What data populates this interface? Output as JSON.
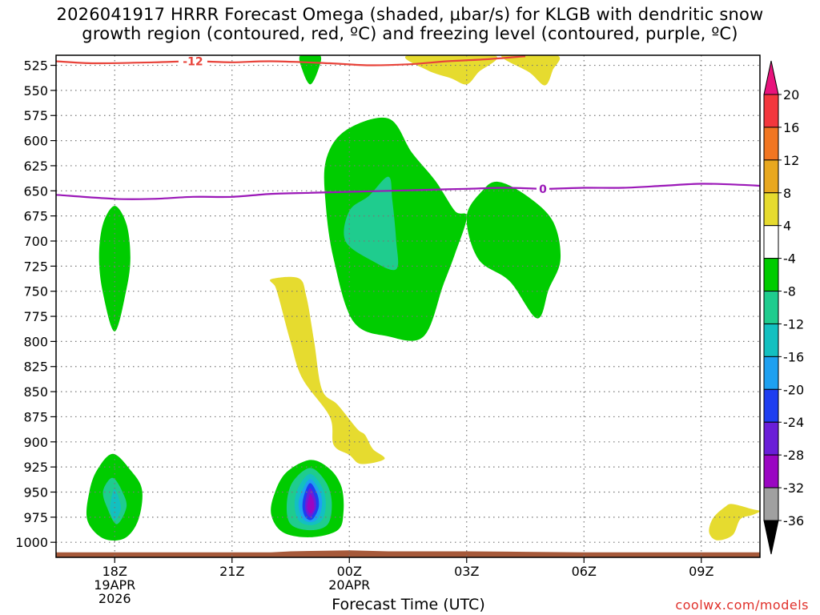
{
  "title": {
    "line1": "2026041917 HRRR Forecast Omega (shaded, μbar/s) for KLGB with dendritic snow",
    "line2": "growth region (contoured, red, ºC) and freezing level (contoured, purple, ºC)"
  },
  "credit": "coolwx.com/models",
  "chart_data": {
    "type": "heatmap",
    "xlabel": "Forecast Time (UTC)",
    "ylabel": "",
    "x_range_hours_utc": [
      16.5,
      34.5
    ],
    "x_ticks": [
      {
        "hour": 18,
        "label": "18Z",
        "sub": [
          "19APR",
          "2026"
        ]
      },
      {
        "hour": 21,
        "label": "21Z",
        "sub": []
      },
      {
        "hour": 24,
        "label": "00Z",
        "sub": [
          "20APR"
        ]
      },
      {
        "hour": 27,
        "label": "03Z",
        "sub": []
      },
      {
        "hour": 30,
        "label": "06Z",
        "sub": []
      },
      {
        "hour": 33,
        "label": "09Z",
        "sub": []
      }
    ],
    "y_range_hpa": [
      1015,
      515
    ],
    "y_inverted": true,
    "y_ticks": [
      525,
      550,
      575,
      600,
      625,
      650,
      675,
      700,
      725,
      750,
      775,
      800,
      825,
      850,
      875,
      900,
      925,
      950,
      975,
      1000
    ],
    "grid": true,
    "colorbar": {
      "levels": [
        {
          "label": "20",
          "color": "#e81a86"
        },
        {
          "label": "16",
          "color": "#f3373d"
        },
        {
          "label": "12",
          "color": "#f17622"
        },
        {
          "label": "8",
          "color": "#e8a81f"
        },
        {
          "label": "4",
          "color": "#e6db2f"
        },
        {
          "label": "-4",
          "color": "#ffffff"
        },
        {
          "label": "-8",
          "color": "#00cc00"
        },
        {
          "label": "-12",
          "color": "#1fcc8e"
        },
        {
          "label": "-16",
          "color": "#13c0c0"
        },
        {
          "label": "-20",
          "color": "#1ea0f0"
        },
        {
          "label": "-24",
          "color": "#1e3ef0"
        },
        {
          "label": "-28",
          "color": "#6a1ed8"
        },
        {
          "label": "-32",
          "color": "#9a06c2"
        },
        {
          "label": "-36",
          "color": "#a0a0a0"
        }
      ],
      "top_arrow_color": "#e8137c",
      "bottom_arrow_color": "#000000"
    },
    "contours": [
      {
        "name": "dendritic growth region",
        "value_label": "-12",
        "color": "#e8433a",
        "points": [
          [
            16.5,
            521
          ],
          [
            17.5,
            523
          ],
          [
            19,
            522
          ],
          [
            20,
            521
          ],
          [
            21,
            522
          ],
          [
            22,
            521
          ],
          [
            23.5,
            523
          ],
          [
            24.5,
            525
          ],
          [
            25.5,
            524
          ],
          [
            26.5,
            521
          ],
          [
            27.5,
            519
          ],
          [
            28.5,
            516
          ]
        ]
      },
      {
        "name": "freezing level",
        "value_label": "0",
        "color": "#9b18b8",
        "points": [
          [
            16.5,
            654
          ],
          [
            18,
            658
          ],
          [
            19,
            658
          ],
          [
            20,
            656
          ],
          [
            21,
            656
          ],
          [
            22,
            653
          ],
          [
            23,
            652
          ],
          [
            24,
            651
          ],
          [
            25,
            650
          ],
          [
            26,
            649
          ],
          [
            27,
            648
          ],
          [
            28,
            647
          ],
          [
            29,
            648
          ],
          [
            30,
            647
          ],
          [
            31,
            647
          ],
          [
            32,
            645
          ],
          [
            33,
            643
          ],
          [
            34,
            644
          ],
          [
            34.5,
            645
          ]
        ]
      }
    ],
    "omega_regions": [
      {
        "band": "-8",
        "color": "#00cc00",
        "points": [
          [
            22.75,
            515
          ],
          [
            23.25,
            515
          ],
          [
            23.2,
            530
          ],
          [
            23.0,
            544
          ],
          [
            22.8,
            530
          ]
        ]
      },
      {
        "band": "4",
        "color": "#e6db2f",
        "points": [
          [
            25.5,
            515
          ],
          [
            27.7,
            515
          ],
          [
            27.3,
            532
          ],
          [
            27.0,
            544
          ],
          [
            26.6,
            538
          ],
          [
            26.0,
            530
          ]
        ]
      },
      {
        "band": "4",
        "color": "#e6db2f",
        "points": [
          [
            27.9,
            515
          ],
          [
            29.3,
            515
          ],
          [
            29.2,
            530
          ],
          [
            29.0,
            545
          ],
          [
            28.6,
            532
          ]
        ]
      },
      {
        "band": "-8",
        "color": "#00cc00",
        "points": [
          [
            18.0,
            665
          ],
          [
            18.3,
            683
          ],
          [
            18.4,
            716
          ],
          [
            18.3,
            748
          ],
          [
            18.0,
            790
          ],
          [
            17.7,
            752
          ],
          [
            17.6,
            716
          ],
          [
            17.7,
            683
          ]
        ]
      },
      {
        "band": "-8",
        "color": "#00cc00",
        "points": [
          [
            25.0,
            578
          ],
          [
            25.6,
            612
          ],
          [
            26.2,
            640
          ],
          [
            26.7,
            670
          ],
          [
            27.0,
            676
          ],
          [
            26.7,
            713
          ],
          [
            26.4,
            744
          ],
          [
            25.9,
            795
          ],
          [
            25.0,
            795
          ],
          [
            24.1,
            780
          ],
          [
            23.6,
            718
          ],
          [
            23.4,
            665
          ],
          [
            23.4,
            620
          ],
          [
            23.9,
            590
          ]
        ]
      },
      {
        "band": "-12",
        "color": "#1fcc8e",
        "points": [
          [
            25.0,
            636
          ],
          [
            25.1,
            660
          ],
          [
            25.2,
            700
          ],
          [
            25.2,
            728
          ],
          [
            24.6,
            720
          ],
          [
            23.9,
            700
          ],
          [
            24.0,
            670
          ],
          [
            24.5,
            655
          ]
        ]
      },
      {
        "band": "-8",
        "color": "#00cc00",
        "points": [
          [
            27.8,
            641
          ],
          [
            28.5,
            654
          ],
          [
            29.2,
            680
          ],
          [
            29.4,
            718
          ],
          [
            29.1,
            748
          ],
          [
            28.8,
            777
          ],
          [
            28.1,
            740
          ],
          [
            27.3,
            718
          ],
          [
            27.0,
            676
          ],
          [
            27.4,
            650
          ]
        ]
      },
      {
        "band": "4",
        "color": "#e6db2f",
        "points": [
          [
            22.0,
            738
          ],
          [
            22.7,
            737
          ],
          [
            22.9,
            755
          ],
          [
            23.1,
            800
          ],
          [
            23.3,
            848
          ],
          [
            23.7,
            863
          ],
          [
            24.2,
            887
          ],
          [
            24.4,
            893
          ],
          [
            24.6,
            907
          ],
          [
            24.9,
            917
          ],
          [
            24.3,
            922
          ],
          [
            24.0,
            913
          ],
          [
            23.6,
            903
          ],
          [
            23.5,
            875
          ],
          [
            22.8,
            837
          ],
          [
            22.5,
            801
          ],
          [
            22.2,
            757
          ],
          [
            22.1,
            745
          ]
        ]
      },
      {
        "band": "4",
        "color": "#e6db2f",
        "points": [
          [
            33.8,
            962
          ],
          [
            34.3,
            967
          ],
          [
            34.5,
            969
          ],
          [
            34.3,
            973
          ],
          [
            34.0,
            977
          ],
          [
            33.8,
            993
          ],
          [
            33.4,
            998
          ],
          [
            33.2,
            990
          ],
          [
            33.3,
            976
          ],
          [
            33.6,
            965
          ]
        ]
      },
      {
        "band": "-8",
        "color": "#00cc00",
        "points": [
          [
            17.95,
            912
          ],
          [
            18.4,
            928
          ],
          [
            18.7,
            948
          ],
          [
            18.6,
            978
          ],
          [
            18.25,
            996
          ],
          [
            17.7,
            996
          ],
          [
            17.3,
            978
          ],
          [
            17.35,
            950
          ],
          [
            17.55,
            928
          ]
        ]
      },
      {
        "band": "-12",
        "color": "#1fcc8e",
        "points": [
          [
            18.0,
            937
          ],
          [
            18.2,
            950
          ],
          [
            18.3,
            965
          ],
          [
            18.05,
            982
          ],
          [
            17.8,
            965
          ],
          [
            17.7,
            950
          ],
          [
            17.85,
            938
          ]
        ]
      },
      {
        "band": "-16",
        "color": "#13c0c0",
        "points": [
          [
            18.0,
            947
          ],
          [
            18.12,
            958
          ],
          [
            18.15,
            968
          ],
          [
            18.0,
            978
          ],
          [
            17.88,
            968
          ],
          [
            17.92,
            955
          ]
        ]
      },
      {
        "band": "-8",
        "color": "#00cc00",
        "points": [
          [
            23.0,
            918
          ],
          [
            23.5,
            927
          ],
          [
            23.8,
            945
          ],
          [
            23.85,
            970
          ],
          [
            23.7,
            988
          ],
          [
            23.0,
            995
          ],
          [
            22.3,
            990
          ],
          [
            22.0,
            972
          ],
          [
            22.1,
            950
          ],
          [
            22.4,
            930
          ]
        ]
      },
      {
        "band": "-12",
        "color": "#1fcc8e",
        "points": [
          [
            23.0,
            926
          ],
          [
            23.4,
            940
          ],
          [
            23.55,
            960
          ],
          [
            23.45,
            982
          ],
          [
            23.0,
            988
          ],
          [
            22.5,
            982
          ],
          [
            22.4,
            962
          ],
          [
            22.55,
            940
          ]
        ]
      },
      {
        "band": "-16",
        "color": "#13c0c0",
        "points": [
          [
            23.0,
            932
          ],
          [
            23.3,
            945
          ],
          [
            23.4,
            962
          ],
          [
            23.3,
            978
          ],
          [
            23.0,
            983
          ],
          [
            22.7,
            978
          ],
          [
            22.6,
            962
          ],
          [
            22.7,
            945
          ]
        ]
      },
      {
        "band": "-20",
        "color": "#1ea0f0",
        "points": [
          [
            23.0,
            937
          ],
          [
            23.25,
            950
          ],
          [
            23.3,
            963
          ],
          [
            23.2,
            976
          ],
          [
            23.0,
            980
          ],
          [
            22.8,
            976
          ],
          [
            22.7,
            963
          ],
          [
            22.78,
            950
          ]
        ]
      },
      {
        "band": "-24",
        "color": "#1e3ef0",
        "points": [
          [
            23.0,
            941
          ],
          [
            23.18,
            952
          ],
          [
            23.22,
            964
          ],
          [
            23.12,
            974
          ],
          [
            23.0,
            978
          ],
          [
            22.86,
            974
          ],
          [
            22.8,
            964
          ],
          [
            22.85,
            952
          ]
        ]
      },
      {
        "band": "-28",
        "color": "#6a1ed8",
        "points": [
          [
            23.0,
            946
          ],
          [
            23.12,
            955
          ],
          [
            23.15,
            965
          ],
          [
            23.07,
            972
          ],
          [
            23.0,
            975
          ],
          [
            22.92,
            972
          ],
          [
            22.87,
            965
          ],
          [
            22.9,
            955
          ]
        ]
      },
      {
        "band": "-32",
        "color": "#9a06c2",
        "points": [
          [
            23.0,
            952
          ],
          [
            23.08,
            958
          ],
          [
            23.1,
            966
          ],
          [
            23.03,
            971
          ],
          [
            22.96,
            970
          ],
          [
            22.92,
            965
          ],
          [
            22.95,
            958
          ]
        ]
      }
    ],
    "terrain": {
      "color": "#a6593a",
      "top_hpa": [
        [
          16.5,
          1010
        ],
        [
          22,
          1010
        ],
        [
          22.5,
          1009
        ],
        [
          24.0,
          1008
        ],
        [
          25.0,
          1009
        ],
        [
          27,
          1009
        ],
        [
          28.5,
          1009.5
        ],
        [
          30,
          1010
        ],
        [
          34.5,
          1010
        ]
      ]
    }
  }
}
